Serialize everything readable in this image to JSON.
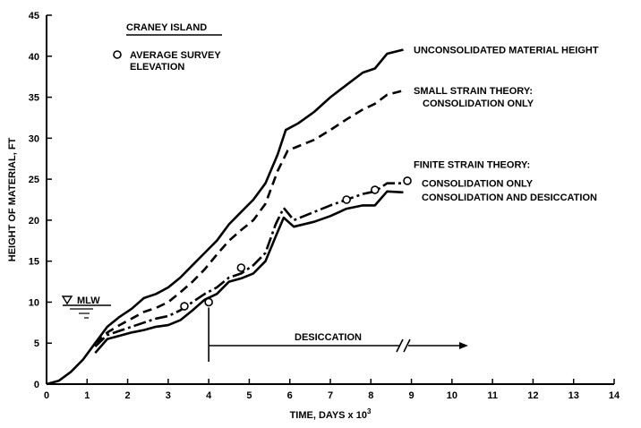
{
  "chart_data": {
    "type": "line",
    "title": "",
    "xlabel": "TIME, DAYS x 10",
    "xlabel_exponent": "3",
    "ylabel": "HEIGHT OF MATERIAL, FT",
    "xlim": [
      0,
      14
    ],
    "ylim": [
      0,
      45
    ],
    "xticks": [
      0,
      1,
      2,
      3,
      4,
      5,
      6,
      7,
      8,
      9,
      10,
      11,
      12,
      13,
      14
    ],
    "yticks": [
      0,
      5,
      10,
      15,
      20,
      25,
      30,
      35,
      40,
      45
    ],
    "grid": false,
    "site_label": "CRANEY ISLAND",
    "survey_legend": [
      "AVERAGE SURVEY",
      "ELEVATION"
    ],
    "mlw_label": "MLW",
    "desiccation_label": "DESICCATION",
    "desiccation_start": 4.0,
    "desiccation_end": 10.4,
    "finite_strain_heading": "FINITE STRAIN THEORY:",
    "series": [
      {
        "key": "unconsolidated",
        "style": "solid",
        "label": [
          "UNCONSOLIDATED MATERIAL HEIGHT"
        ],
        "x": [
          0,
          0.3,
          0.6,
          0.9,
          1.2,
          1.5,
          1.8,
          2.1,
          2.4,
          2.7,
          3.0,
          3.3,
          3.6,
          3.9,
          4.2,
          4.5,
          4.8,
          5.1,
          5.4,
          5.7,
          5.9,
          6.2,
          6.6,
          7.0,
          7.4,
          7.8,
          8.1,
          8.4,
          8.8
        ],
        "y": [
          0,
          0.4,
          1.5,
          3.0,
          5.0,
          7.0,
          8.2,
          9.2,
          10.5,
          11.0,
          11.8,
          13.0,
          14.5,
          16.0,
          17.5,
          19.5,
          21.0,
          22.5,
          24.5,
          28.0,
          31.0,
          31.8,
          33.2,
          35.0,
          36.5,
          38.0,
          38.5,
          40.3,
          40.8
        ]
      },
      {
        "key": "small_strain",
        "style": "dashed",
        "label": [
          "SMALL STRAIN THEORY:",
          "CONSOLIDATION ONLY"
        ],
        "x": [
          1.2,
          1.5,
          1.8,
          2.1,
          2.4,
          2.7,
          3.0,
          3.3,
          3.6,
          3.9,
          4.2,
          4.5,
          4.8,
          5.1,
          5.4,
          5.7,
          5.95,
          6.2,
          6.6,
          7.0,
          7.4,
          7.8,
          8.1,
          8.4,
          8.8
        ],
        "y": [
          5.0,
          6.3,
          7.2,
          8.0,
          8.8,
          9.3,
          10.0,
          11.2,
          12.5,
          14.0,
          15.8,
          17.5,
          18.8,
          20.0,
          22.0,
          26.0,
          28.5,
          29.0,
          29.8,
          31.0,
          32.3,
          33.5,
          34.2,
          35.3,
          35.8
        ]
      },
      {
        "key": "finite_consolidation",
        "style": "dashdot",
        "label": [
          "CONSOLIDATION ONLY"
        ],
        "x": [
          1.2,
          1.5,
          1.8,
          2.1,
          2.4,
          2.7,
          3.0,
          3.3,
          3.6,
          3.9,
          4.2,
          4.5,
          4.8,
          5.1,
          5.4,
          5.65,
          5.85,
          6.1,
          6.6,
          7.0,
          7.4,
          7.8,
          8.1,
          8.4,
          8.8
        ],
        "y": [
          4.6,
          6.0,
          6.5,
          7.0,
          7.5,
          8.0,
          8.3,
          9.0,
          10.0,
          11.0,
          11.8,
          13.0,
          13.5,
          14.5,
          16.0,
          19.5,
          21.5,
          20.0,
          21.0,
          21.8,
          22.5,
          23.2,
          23.5,
          24.5,
          24.5
        ]
      },
      {
        "key": "finite_desiccation",
        "style": "solid",
        "label": [
          "CONSOLIDATION AND DESICCATION"
        ],
        "x": [
          1.2,
          1.5,
          1.8,
          2.1,
          2.4,
          2.7,
          3.0,
          3.3,
          3.6,
          3.9,
          4.2,
          4.5,
          4.8,
          5.1,
          5.4,
          5.65,
          5.85,
          6.1,
          6.6,
          7.0,
          7.4,
          7.8,
          8.1,
          8.4,
          8.8
        ],
        "y": [
          3.8,
          5.5,
          5.9,
          6.3,
          6.6,
          7.0,
          7.2,
          7.8,
          9.0,
          10.3,
          11.0,
          12.5,
          12.9,
          13.5,
          15.0,
          18.0,
          20.3,
          19.2,
          19.8,
          20.5,
          21.4,
          21.8,
          21.8,
          23.5,
          23.4
        ]
      }
    ],
    "survey_points": {
      "x": [
        3.4,
        4.0,
        4.8,
        7.4,
        8.1,
        8.9
      ],
      "y": [
        9.5,
        10.0,
        14.2,
        22.5,
        23.7,
        24.8
      ]
    }
  }
}
